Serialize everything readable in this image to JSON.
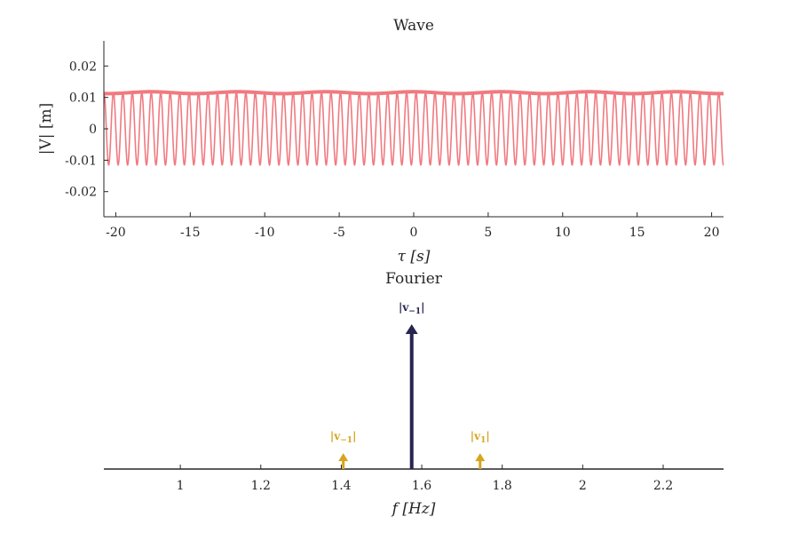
{
  "chart_data": [
    {
      "type": "line",
      "title": "Wave",
      "xlabel": "τ [s]",
      "ylabel": "|V| [m]",
      "xlim": [
        -20.8,
        20.8
      ],
      "ylim": [
        -0.028,
        0.028
      ],
      "xticks": [
        -20,
        -15,
        -10,
        -5,
        0,
        5,
        10,
        15,
        20
      ],
      "xtick_labels": [
        "-20",
        "-15",
        "-10",
        "-5",
        "0",
        "5",
        "10",
        "15",
        "20"
      ],
      "yticks": [
        -0.02,
        -0.01,
        0,
        0.01,
        0.02
      ],
      "ytick_labels": [
        "-0.02",
        "-0.01",
        "0",
        "0.01",
        "0.02"
      ],
      "series": [
        {
          "kind": "oscillation",
          "amplitude": 0.0115,
          "frequency_hz": 1.575,
          "color": "#f07a80"
        },
        {
          "kind": "envelope",
          "value": 0.0115,
          "ripple": 0.0003,
          "ripple_frequency_hz": 0.17,
          "color": "#f07a80"
        }
      ],
      "grid": false
    },
    {
      "type": "bar",
      "title": "Fourier",
      "xlabel": "f [Hz]",
      "xlim": [
        0.81,
        2.35
      ],
      "xticks": [
        1,
        1.2,
        1.4,
        1.6,
        1.8,
        2,
        2.2
      ],
      "xtick_labels": [
        "1",
        "1.2",
        "1.4",
        "1.6",
        "1.8",
        "2",
        "2.2"
      ],
      "spectral_lines": [
        {
          "label": "|v−1|",
          "label_main": "|v",
          "label_sub": "−1",
          "label_end": "|",
          "f": 1.575,
          "magnitude": 1.0,
          "color": "#272451"
        },
        {
          "label": "|v−1|",
          "label_main": "|v",
          "label_sub": "−1",
          "label_end": "|",
          "f": 1.405,
          "magnitude": 0.11,
          "color": "#d6a51d"
        },
        {
          "label": "|v1|",
          "label_main": "|v",
          "label_sub": "1",
          "label_end": "|",
          "f": 1.745,
          "magnitude": 0.11,
          "color": "#d6a51d"
        }
      ],
      "grid": false
    }
  ]
}
